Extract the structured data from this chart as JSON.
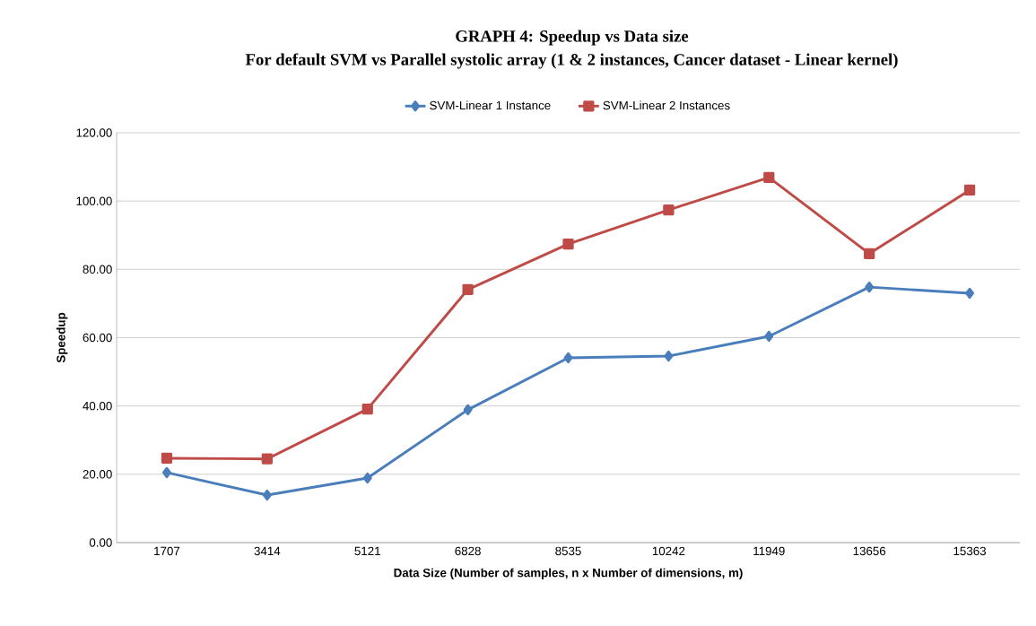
{
  "chart_data": {
    "type": "line",
    "title": "GRAPH 4: Speedup vs Data size",
    "subtitle": "For default SVM vs Parallel systolic array (1 & 2 instances, Cancer dataset - Linear kernel)",
    "xlabel": "Data Size  (Number of samples, n x Number of dimensions, m)",
    "ylabel": "Speedup",
    "categories": [
      "1707",
      "3414",
      "5121",
      "6828",
      "8535",
      "10242",
      "11949",
      "13656",
      "15363"
    ],
    "series": [
      {
        "name": "SVM-Linear 1 Instance",
        "color": "#4a7ebb",
        "marker": "diamond",
        "values": [
          20.5,
          13.9,
          18.9,
          38.9,
          54.1,
          54.6,
          60.4,
          74.8,
          73.0
        ]
      },
      {
        "name": "SVM-Linear 2 Instances",
        "color": "#be4b48",
        "marker": "square",
        "values": [
          24.7,
          24.5,
          39.1,
          74.1,
          87.4,
          97.4,
          106.9,
          84.6,
          103.2
        ]
      }
    ],
    "ylim": [
      0,
      120
    ],
    "yticks": [
      {
        "value": 0,
        "label": "0.00"
      },
      {
        "value": 20,
        "label": "20.00"
      },
      {
        "value": 40,
        "label": "40.00"
      },
      {
        "value": 60,
        "label": "60.00"
      },
      {
        "value": 80,
        "label": "80.00"
      },
      {
        "value": 100,
        "label": "100.00"
      },
      {
        "value": 120,
        "label": "120.00"
      }
    ],
    "grid": "y",
    "legend": "top",
    "line_style": "solid"
  }
}
